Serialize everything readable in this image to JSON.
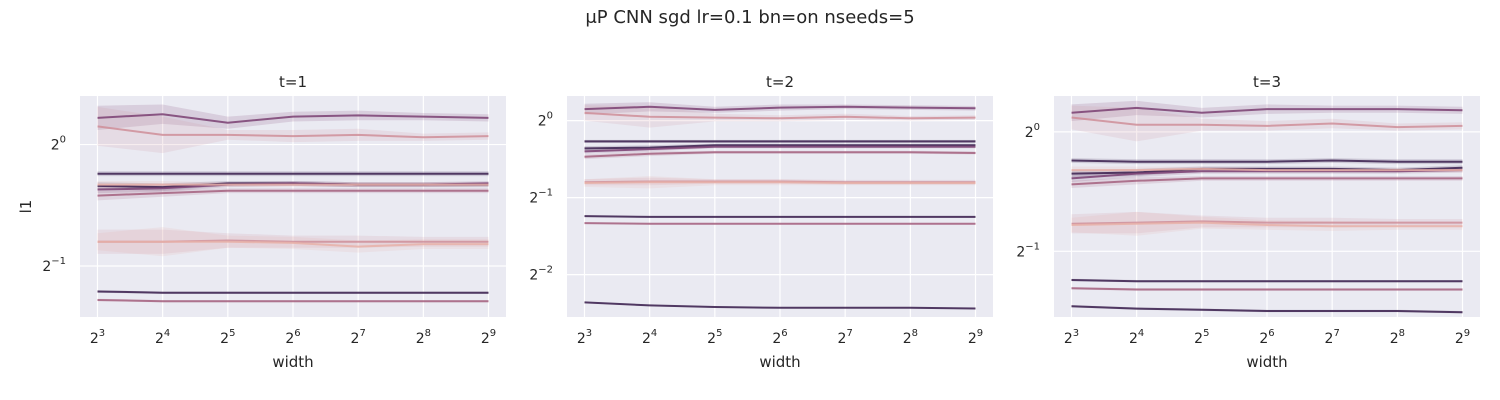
{
  "figure_title": "μP CNN sgd lr=0.1 bn=on nseeds=5",
  "colors": {
    "panel_bg": "#eaeaf2",
    "grid": "#ffffff",
    "text": "#262626",
    "series_palette": [
      "#3a1f4d",
      "#7a3f72",
      "#a4607f",
      "#cf8e99",
      "#e8b0a8"
    ]
  },
  "chart_data": [
    {
      "type": "line",
      "title": "t=1",
      "xlabel": "width",
      "ylabel": "l1",
      "xscale": "log2",
      "yscale": "log2",
      "x": [
        3,
        4,
        5,
        6,
        7,
        8,
        9
      ],
      "xtick_labels": [
        "2^3",
        "2^4",
        "2^5",
        "2^6",
        "2^7",
        "2^8",
        "2^9"
      ],
      "yticks": [
        {
          "exp": -1
        },
        {
          "exp": 0
        }
      ],
      "ylim_log2": [
        -1.42,
        0.4
      ],
      "grid": true,
      "series": [
        {
          "color": "#7a3f72",
          "log2": [
            0.22,
            0.25,
            0.18,
            0.23,
            0.24,
            0.23,
            0.22
          ],
          "band": [
            0.1,
            0.08,
            0.05,
            0.04,
            0.04,
            0.03,
            0.03
          ]
        },
        {
          "color": "#cf8e99",
          "log2": [
            0.15,
            0.08,
            0.08,
            0.07,
            0.08,
            0.06,
            0.07
          ],
          "band": [
            0.16,
            0.15,
            0.04,
            0.05,
            0.05,
            0.03,
            0.03
          ]
        },
        {
          "color": "#3a1f4d",
          "log2": [
            -0.24,
            -0.24,
            -0.24,
            -0.24,
            -0.24,
            -0.24,
            -0.24
          ],
          "band": [
            0.02,
            0.02,
            0.02,
            0.02,
            0.02,
            0.02,
            0.02
          ]
        },
        {
          "color": "#3a1f4d",
          "log2": [
            -0.34,
            -0.35,
            -0.32,
            -0.32,
            -0.33,
            -0.33,
            -0.33
          ],
          "band": [
            0.03,
            0.03,
            0.02,
            0.02,
            0.02,
            0.02,
            0.02
          ]
        },
        {
          "color": "#7a3f72",
          "log2": [
            -0.37,
            -0.36,
            -0.33,
            -0.32,
            -0.33,
            -0.33,
            -0.32
          ],
          "band": [
            0.03,
            0.03,
            0.02,
            0.02,
            0.02,
            0.02,
            0.02
          ]
        },
        {
          "color": "#a4607f",
          "log2": [
            -0.42,
            -0.4,
            -0.38,
            -0.38,
            -0.38,
            -0.38,
            -0.38
          ],
          "band": [
            0.04,
            0.03,
            0.02,
            0.02,
            0.02,
            0.02,
            0.02
          ]
        },
        {
          "color": "#e8b0a8",
          "log2": [
            -0.33,
            -0.33,
            -0.33,
            -0.33,
            -0.33,
            -0.33,
            -0.33
          ],
          "band": [
            0.03,
            0.03,
            0.02,
            0.02,
            0.02,
            0.02,
            0.02
          ]
        },
        {
          "color": "#cf8e99",
          "log2": [
            -0.8,
            -0.8,
            -0.79,
            -0.8,
            -0.8,
            -0.8,
            -0.8
          ],
          "band": [
            0.1,
            0.1,
            0.06,
            0.05,
            0.05,
            0.04,
            0.04
          ]
        },
        {
          "color": "#e8b0a8",
          "log2": [
            -0.8,
            -0.8,
            -0.8,
            -0.81,
            -0.84,
            -0.82,
            -0.82
          ],
          "band": [
            0.07,
            0.12,
            0.05,
            0.05,
            0.05,
            0.04,
            0.04
          ]
        },
        {
          "color": "#3a1f4d",
          "log2": [
            -1.21,
            -1.22,
            -1.22,
            -1.22,
            -1.22,
            -1.22,
            -1.22
          ],
          "band": [
            0.01,
            0.01,
            0.01,
            0.01,
            0.01,
            0.01,
            0.01
          ]
        },
        {
          "color": "#a4607f",
          "log2": [
            -1.28,
            -1.29,
            -1.29,
            -1.29,
            -1.29,
            -1.29,
            -1.29
          ],
          "band": [
            0.01,
            0.01,
            0.01,
            0.01,
            0.01,
            0.01,
            0.01
          ]
        }
      ]
    },
    {
      "type": "line",
      "title": "t=2",
      "xlabel": "width",
      "ylabel": "",
      "xscale": "log2",
      "yscale": "log2",
      "x": [
        3,
        4,
        5,
        6,
        7,
        8,
        9
      ],
      "xtick_labels": [
        "2^3",
        "2^4",
        "2^5",
        "2^6",
        "2^7",
        "2^8",
        "2^9"
      ],
      "yticks": [
        {
          "exp": -2
        },
        {
          "exp": -1
        },
        {
          "exp": 0
        }
      ],
      "ylim_log2": [
        -2.55,
        0.32
      ],
      "grid": true,
      "series": [
        {
          "color": "#7a3f72",
          "log2": [
            0.15,
            0.18,
            0.14,
            0.17,
            0.18,
            0.17,
            0.16
          ],
          "band": [
            0.07,
            0.06,
            0.04,
            0.04,
            0.03,
            0.03,
            0.03
          ]
        },
        {
          "color": "#cf8e99",
          "log2": [
            0.1,
            0.05,
            0.04,
            0.03,
            0.05,
            0.03,
            0.04
          ],
          "band": [
            0.1,
            0.14,
            0.05,
            0.04,
            0.04,
            0.03,
            0.03
          ]
        },
        {
          "color": "#3a1f4d",
          "log2": [
            -0.27,
            -0.27,
            -0.27,
            -0.27,
            -0.27,
            -0.27,
            -0.27
          ],
          "band": [
            0.02,
            0.02,
            0.02,
            0.02,
            0.02,
            0.02,
            0.02
          ]
        },
        {
          "color": "#3a1f4d",
          "log2": [
            -0.36,
            -0.35,
            -0.32,
            -0.32,
            -0.32,
            -0.32,
            -0.32
          ],
          "band": [
            0.03,
            0.03,
            0.02,
            0.02,
            0.02,
            0.02,
            0.02
          ]
        },
        {
          "color": "#7a3f72",
          "log2": [
            -0.4,
            -0.37,
            -0.34,
            -0.34,
            -0.34,
            -0.34,
            -0.34
          ],
          "band": [
            0.03,
            0.03,
            0.02,
            0.02,
            0.02,
            0.02,
            0.02
          ]
        },
        {
          "color": "#a4607f",
          "log2": [
            -0.47,
            -0.43,
            -0.41,
            -0.41,
            -0.41,
            -0.41,
            -0.42
          ],
          "band": [
            0.03,
            0.03,
            0.02,
            0.02,
            0.02,
            0.02,
            0.02
          ]
        },
        {
          "color": "#cf8e99",
          "log2": [
            -0.8,
            -0.79,
            -0.79,
            -0.79,
            -0.8,
            -0.8,
            -0.8
          ],
          "band": [
            0.04,
            0.05,
            0.03,
            0.03,
            0.03,
            0.03,
            0.03
          ]
        },
        {
          "color": "#e8b0a8",
          "log2": [
            -0.81,
            -0.8,
            -0.8,
            -0.8,
            -0.81,
            -0.81,
            -0.81
          ],
          "band": [
            0.05,
            0.08,
            0.04,
            0.04,
            0.03,
            0.03,
            0.03
          ]
        },
        {
          "color": "#3a1f4d",
          "log2": [
            -1.24,
            -1.25,
            -1.25,
            -1.25,
            -1.25,
            -1.25,
            -1.25
          ],
          "band": [
            0.01,
            0.01,
            0.01,
            0.01,
            0.01,
            0.01,
            0.01
          ]
        },
        {
          "color": "#a4607f",
          "log2": [
            -1.33,
            -1.34,
            -1.34,
            -1.34,
            -1.34,
            -1.34,
            -1.34
          ],
          "band": [
            0.01,
            0.01,
            0.01,
            0.01,
            0.01,
            0.01,
            0.01
          ]
        },
        {
          "color": "#3a1f4d",
          "log2": [
            -2.36,
            -2.4,
            -2.42,
            -2.43,
            -2.43,
            -2.43,
            -2.44
          ],
          "band": [
            0.01,
            0.01,
            0.01,
            0.01,
            0.01,
            0.01,
            0.01
          ]
        }
      ]
    },
    {
      "type": "line",
      "title": "t=3",
      "xlabel": "width",
      "ylabel": "",
      "xscale": "log2",
      "yscale": "log2",
      "x": [
        3,
        4,
        5,
        6,
        7,
        8,
        9
      ],
      "xtick_labels": [
        "2^3",
        "2^4",
        "2^5",
        "2^6",
        "2^7",
        "2^8",
        "2^9"
      ],
      "yticks": [
        {
          "exp": -1
        },
        {
          "exp": 0
        }
      ],
      "ylim_log2": [
        -1.55,
        0.3
      ],
      "grid": true,
      "series": [
        {
          "color": "#7a3f72",
          "log2": [
            0.16,
            0.2,
            0.16,
            0.19,
            0.19,
            0.19,
            0.18
          ],
          "band": [
            0.07,
            0.06,
            0.04,
            0.04,
            0.03,
            0.03,
            0.03
          ]
        },
        {
          "color": "#cf8e99",
          "log2": [
            0.12,
            0.06,
            0.06,
            0.05,
            0.07,
            0.04,
            0.05
          ],
          "band": [
            0.1,
            0.14,
            0.05,
            0.04,
            0.04,
            0.03,
            0.03
          ]
        },
        {
          "color": "#3a1f4d",
          "log2": [
            -0.24,
            -0.25,
            -0.25,
            -0.25,
            -0.24,
            -0.25,
            -0.25
          ],
          "band": [
            0.02,
            0.02,
            0.02,
            0.02,
            0.02,
            0.02,
            0.02
          ]
        },
        {
          "color": "#3a1f4d",
          "log2": [
            -0.35,
            -0.34,
            -0.31,
            -0.31,
            -0.31,
            -0.32,
            -0.3
          ],
          "band": [
            0.03,
            0.03,
            0.02,
            0.02,
            0.02,
            0.02,
            0.02
          ]
        },
        {
          "color": "#7a3f72",
          "log2": [
            -0.39,
            -0.35,
            -0.33,
            -0.33,
            -0.33,
            -0.33,
            -0.32
          ],
          "band": [
            0.03,
            0.03,
            0.02,
            0.02,
            0.02,
            0.02,
            0.02
          ]
        },
        {
          "color": "#a4607f",
          "log2": [
            -0.44,
            -0.41,
            -0.39,
            -0.39,
            -0.39,
            -0.39,
            -0.39
          ],
          "band": [
            0.03,
            0.03,
            0.02,
            0.02,
            0.02,
            0.02,
            0.02
          ]
        },
        {
          "color": "#e8b0a8",
          "log2": [
            -0.32,
            -0.32,
            -0.31,
            -0.32,
            -0.32,
            -0.32,
            -0.32
          ],
          "band": [
            0.03,
            0.03,
            0.02,
            0.02,
            0.02,
            0.02,
            0.02
          ]
        },
        {
          "color": "#cf8e99",
          "log2": [
            -0.77,
            -0.76,
            -0.75,
            -0.76,
            -0.76,
            -0.76,
            -0.76
          ],
          "band": [
            0.08,
            0.09,
            0.05,
            0.04,
            0.04,
            0.03,
            0.03
          ]
        },
        {
          "color": "#e8b0a8",
          "log2": [
            -0.78,
            -0.77,
            -0.76,
            -0.78,
            -0.79,
            -0.79,
            -0.79
          ],
          "band": [
            0.06,
            0.1,
            0.05,
            0.04,
            0.04,
            0.03,
            0.03
          ]
        },
        {
          "color": "#3a1f4d",
          "log2": [
            -1.24,
            -1.25,
            -1.25,
            -1.25,
            -1.25,
            -1.25,
            -1.25
          ],
          "band": [
            0.01,
            0.01,
            0.01,
            0.01,
            0.01,
            0.01,
            0.01
          ]
        },
        {
          "color": "#a4607f",
          "log2": [
            -1.31,
            -1.32,
            -1.32,
            -1.32,
            -1.32,
            -1.32,
            -1.32
          ],
          "band": [
            0.01,
            0.01,
            0.01,
            0.01,
            0.01,
            0.01,
            0.01
          ]
        },
        {
          "color": "#3a1f4d",
          "log2": [
            -1.46,
            -1.48,
            -1.49,
            -1.5,
            -1.5,
            -1.5,
            -1.51
          ],
          "band": [
            0.01,
            0.01,
            0.01,
            0.01,
            0.01,
            0.01,
            0.01
          ]
        }
      ]
    }
  ]
}
